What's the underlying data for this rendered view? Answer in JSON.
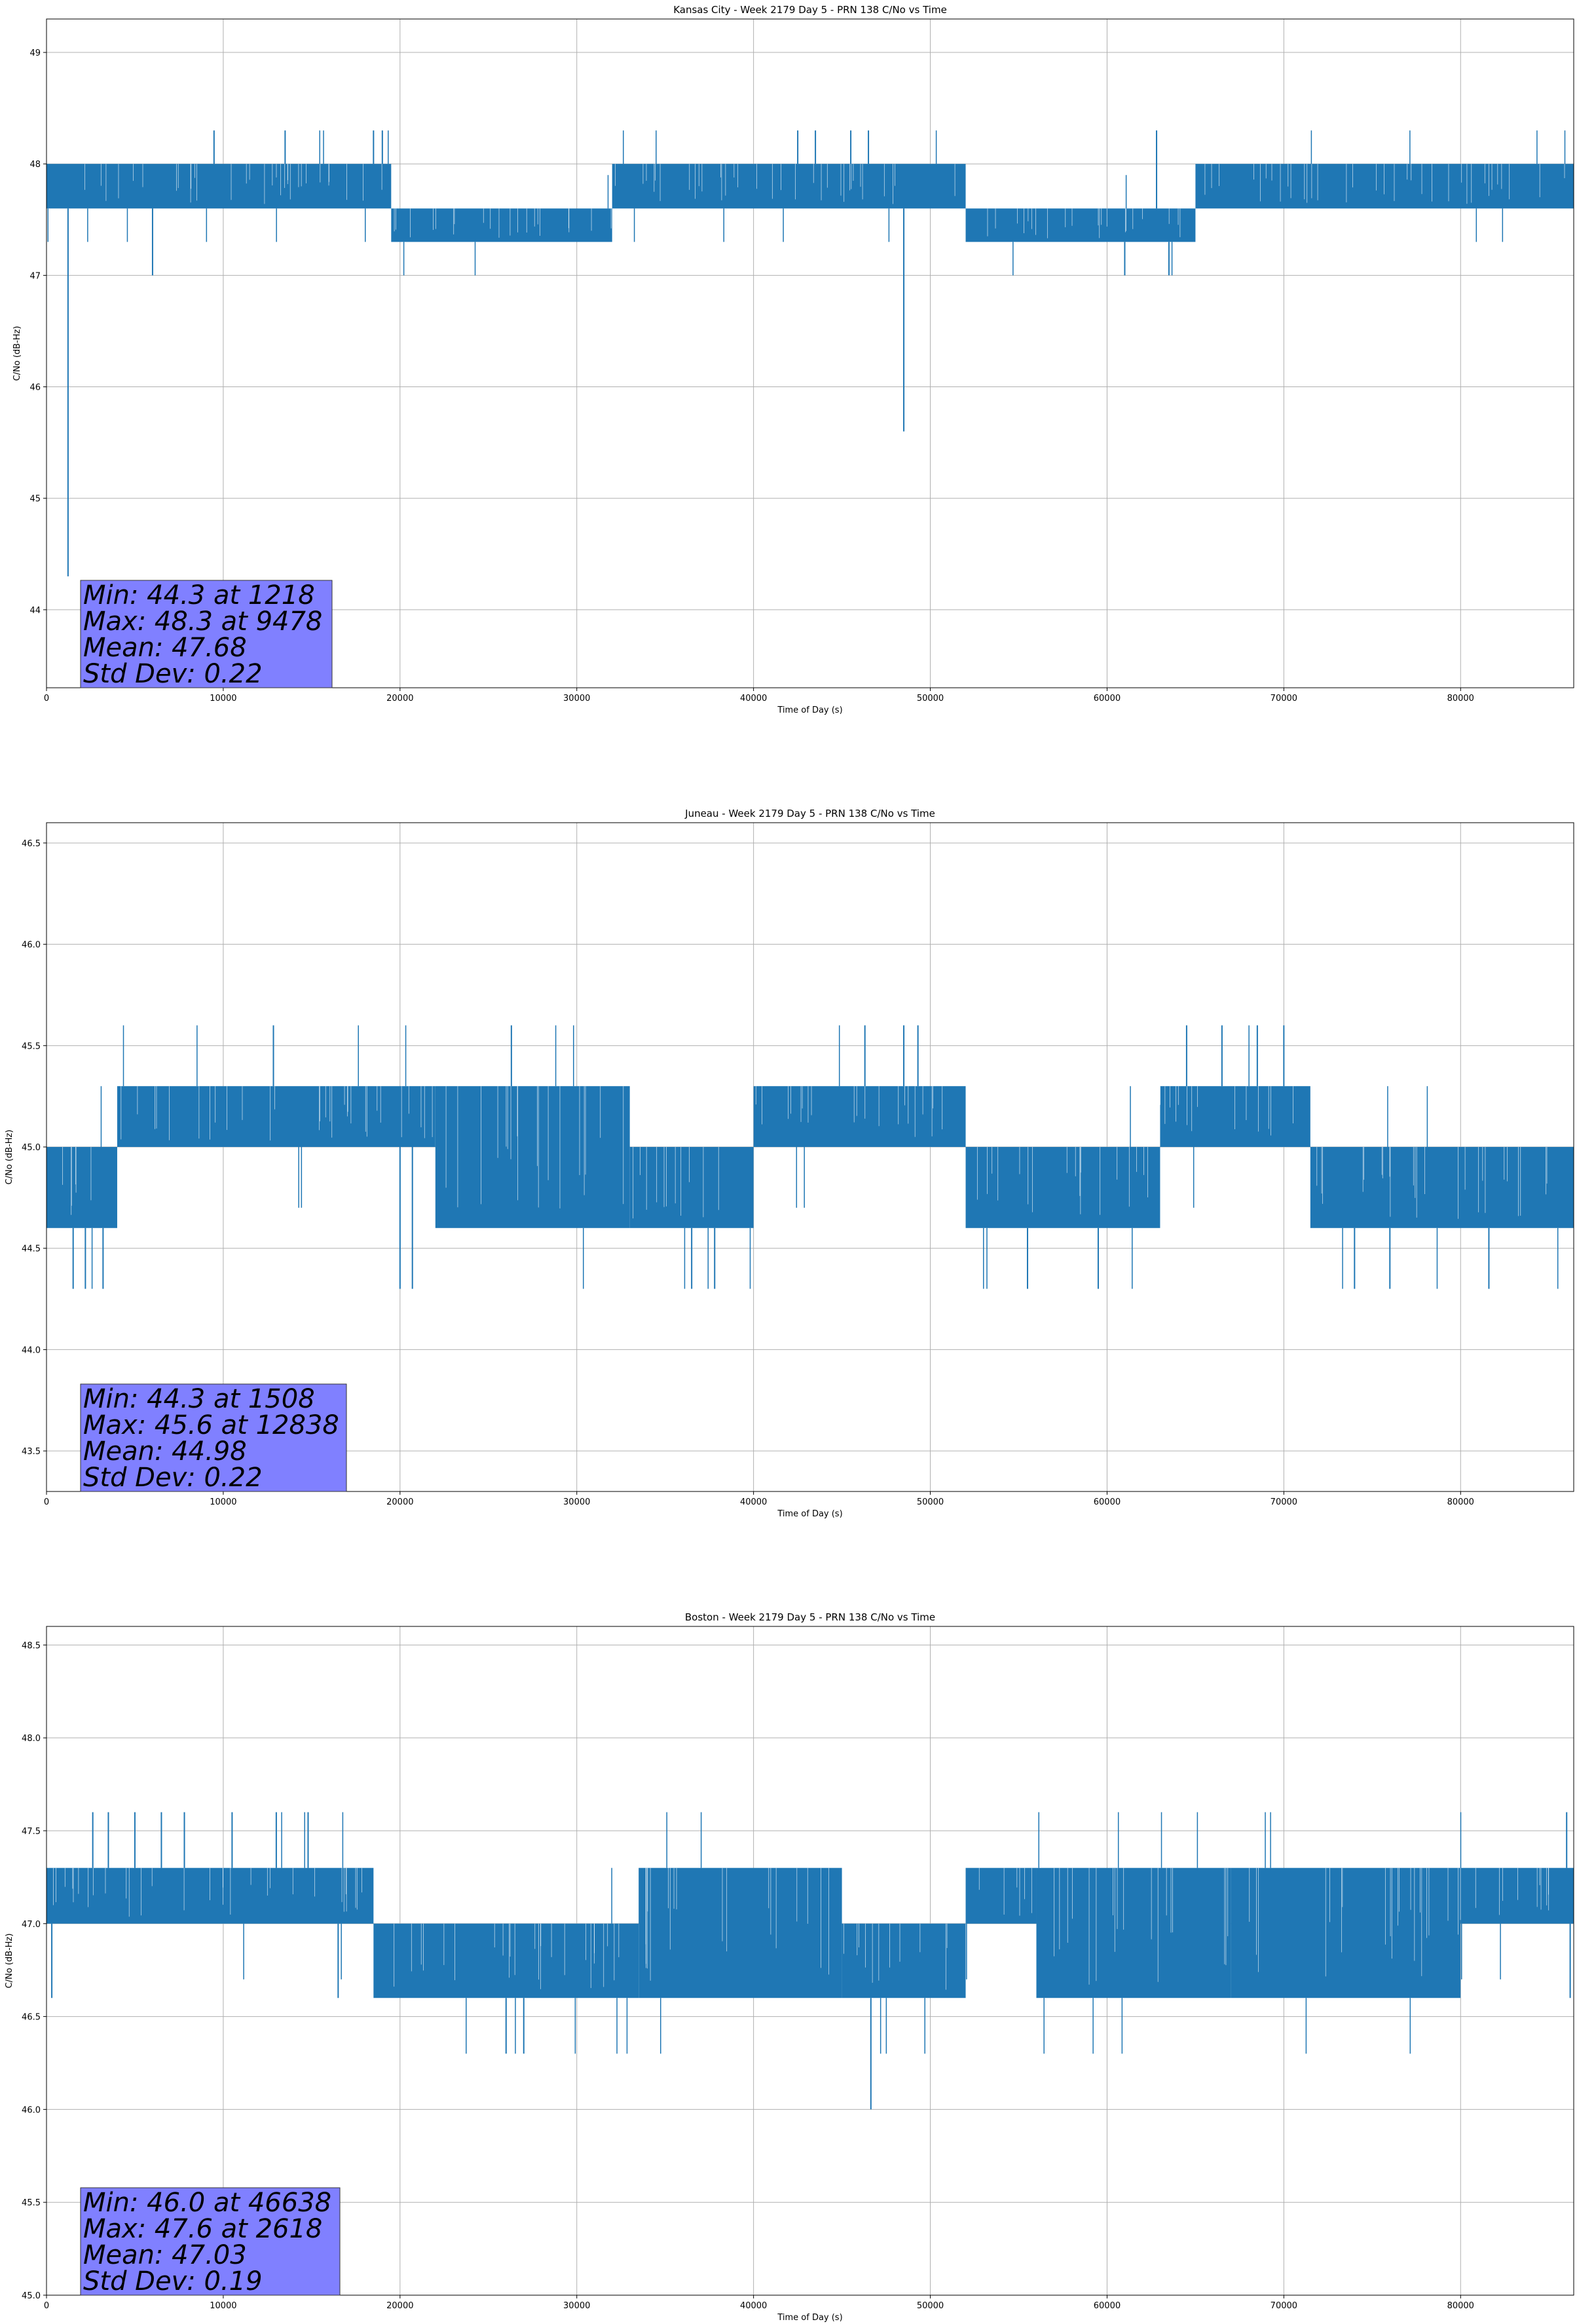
{
  "chart_data": [
    {
      "type": "line",
      "title": "Kansas City - Week 2179 Day 5 - PRN 138 C/No vs Time",
      "xlabel": "Time of Day (s)",
      "ylabel": "C/No (dB-Hz)",
      "xlim": [
        0,
        86400
      ],
      "ylim": [
        43.3,
        49.3
      ],
      "xticks": [
        "0",
        "10000",
        "20000",
        "30000",
        "40000",
        "50000",
        "60000",
        "70000",
        "80000"
      ],
      "xtick_values": [
        0,
        10000,
        20000,
        30000,
        40000,
        50000,
        60000,
        70000,
        80000
      ],
      "yticks": [
        "44",
        "45",
        "46",
        "47",
        "48",
        "49"
      ],
      "ytick_values": [
        44,
        45,
        46,
        47,
        48,
        49
      ],
      "grid": true,
      "series_color": "#1f77b4",
      "stats_box_color": "#8080ff",
      "stats": [
        "Min: 44.3 at 1218",
        "Max: 48.3 at 9478",
        "Mean: 47.68",
        "Std Dev: 0.22"
      ],
      "bands": [
        {
          "x": [
            0,
            19500
          ],
          "low": 47.6,
          "high": 48.0
        },
        {
          "x": [
            19500,
            32000
          ],
          "low": 47.3,
          "high": 47.6
        },
        {
          "x": [
            32000,
            52000
          ],
          "low": 47.6,
          "high": 48.0
        },
        {
          "x": [
            52000,
            65000
          ],
          "low": 47.3,
          "high": 47.6
        },
        {
          "x": [
            65000,
            86400
          ],
          "low": 47.6,
          "high": 48.0
        }
      ],
      "spikes": [
        {
          "x": 1218,
          "y": 44.3
        },
        {
          "x": 6000,
          "y": 47.0
        },
        {
          "x": 9478,
          "y": 48.3
        },
        {
          "x": 13500,
          "y": 48.3
        },
        {
          "x": 18500,
          "y": 48.3
        },
        {
          "x": 19000,
          "y": 48.3
        },
        {
          "x": 42500,
          "y": 48.3
        },
        {
          "x": 43500,
          "y": 48.3
        },
        {
          "x": 45500,
          "y": 48.3
        },
        {
          "x": 46500,
          "y": 48.3
        },
        {
          "x": 48500,
          "y": 45.6
        },
        {
          "x": 61000,
          "y": 47.0
        },
        {
          "x": 62800,
          "y": 48.3
        },
        {
          "x": 63500,
          "y": 47.0
        }
      ]
    },
    {
      "type": "line",
      "title": "Juneau - Week 2179 Day 5 - PRN 138 C/No vs Time",
      "xlabel": "Time of Day (s)",
      "ylabel": "C/No (dB-Hz)",
      "xlim": [
        0,
        86400
      ],
      "ylim": [
        43.3,
        46.6
      ],
      "xticks": [
        "0",
        "10000",
        "20000",
        "30000",
        "40000",
        "50000",
        "60000",
        "70000",
        "80000"
      ],
      "xtick_values": [
        0,
        10000,
        20000,
        30000,
        40000,
        50000,
        60000,
        70000,
        80000
      ],
      "yticks": [
        "43.5",
        "44.0",
        "44.5",
        "45.0",
        "45.5",
        "46.0",
        "46.5"
      ],
      "ytick_values": [
        43.5,
        44.0,
        44.5,
        45.0,
        45.5,
        46.0,
        46.5
      ],
      "grid": true,
      "series_color": "#1f77b4",
      "stats_box_color": "#8080ff",
      "stats": [
        "Min: 44.3 at 1508",
        "Max: 45.6 at 12838",
        "Mean: 44.98",
        "Std Dev: 0.22"
      ],
      "bands": [
        {
          "x": [
            0,
            4000
          ],
          "low": 44.6,
          "high": 45.0
        },
        {
          "x": [
            4000,
            22000
          ],
          "low": 45.0,
          "high": 45.3
        },
        {
          "x": [
            22000,
            33000
          ],
          "low": 44.6,
          "high": 45.3
        },
        {
          "x": [
            33000,
            40000
          ],
          "low": 44.6,
          "high": 45.0
        },
        {
          "x": [
            40000,
            52000
          ],
          "low": 45.0,
          "high": 45.3
        },
        {
          "x": [
            52000,
            63000
          ],
          "low": 44.6,
          "high": 45.0
        },
        {
          "x": [
            63000,
            71500
          ],
          "low": 45.0,
          "high": 45.3
        },
        {
          "x": [
            71500,
            86400
          ],
          "low": 44.6,
          "high": 45.0
        }
      ],
      "spikes": [
        {
          "x": 1508,
          "y": 44.3
        },
        {
          "x": 2200,
          "y": 44.3
        },
        {
          "x": 3200,
          "y": 44.3
        },
        {
          "x": 12838,
          "y": 45.6
        },
        {
          "x": 20000,
          "y": 44.3
        },
        {
          "x": 20700,
          "y": 44.3
        },
        {
          "x": 26300,
          "y": 45.6
        },
        {
          "x": 36500,
          "y": 44.3
        },
        {
          "x": 37800,
          "y": 44.3
        },
        {
          "x": 46300,
          "y": 45.6
        },
        {
          "x": 48500,
          "y": 45.6
        },
        {
          "x": 49300,
          "y": 45.6
        },
        {
          "x": 55500,
          "y": 44.3
        },
        {
          "x": 59500,
          "y": 44.3
        },
        {
          "x": 64500,
          "y": 45.6
        },
        {
          "x": 66500,
          "y": 45.6
        },
        {
          "x": 68500,
          "y": 45.6
        },
        {
          "x": 70000,
          "y": 45.6
        },
        {
          "x": 74000,
          "y": 44.3
        },
        {
          "x": 76000,
          "y": 44.3
        },
        {
          "x": 81600,
          "y": 44.3
        }
      ]
    },
    {
      "type": "line",
      "title": "Boston - Week 2179 Day 5 - PRN 138 C/No vs Time",
      "xlabel": "Time of Day (s)",
      "ylabel": "C/No (dB-Hz)",
      "xlim": [
        0,
        86400
      ],
      "ylim": [
        45.0,
        48.6
      ],
      "xticks": [
        "0",
        "10000",
        "20000",
        "30000",
        "40000",
        "50000",
        "60000",
        "70000",
        "80000"
      ],
      "xtick_values": [
        0,
        10000,
        20000,
        30000,
        40000,
        50000,
        60000,
        70000,
        80000
      ],
      "yticks": [
        "45.0",
        "45.5",
        "46.0",
        "46.5",
        "47.0",
        "47.5",
        "48.0",
        "48.5"
      ],
      "ytick_values": [
        45.0,
        45.5,
        46.0,
        46.5,
        47.0,
        47.5,
        48.0,
        48.5
      ],
      "grid": true,
      "series_color": "#1f77b4",
      "stats_box_color": "#8080ff",
      "stats": [
        "Min: 46.0 at 46638",
        "Max: 47.6 at 2618",
        "Mean: 47.03",
        "Std Dev: 0.19"
      ],
      "bands": [
        {
          "x": [
            0,
            18500
          ],
          "low": 47.0,
          "high": 47.3
        },
        {
          "x": [
            18500,
            33500
          ],
          "low": 46.6,
          "high": 47.0
        },
        {
          "x": [
            33500,
            45000
          ],
          "low": 46.6,
          "high": 47.3
        },
        {
          "x": [
            45000,
            52000
          ],
          "low": 46.6,
          "high": 47.0
        },
        {
          "x": [
            52000,
            56000
          ],
          "low": 47.0,
          "high": 47.3
        },
        {
          "x": [
            56000,
            67000
          ],
          "low": 46.6,
          "high": 47.3
        },
        {
          "x": [
            67000,
            80000
          ],
          "low": 46.6,
          "high": 47.3
        },
        {
          "x": [
            80000,
            86400
          ],
          "low": 47.0,
          "high": 47.3
        }
      ],
      "spikes": [
        {
          "x": 300,
          "y": 46.6
        },
        {
          "x": 2618,
          "y": 47.6
        },
        {
          "x": 3500,
          "y": 47.6
        },
        {
          "x": 5000,
          "y": 47.6
        },
        {
          "x": 6500,
          "y": 47.6
        },
        {
          "x": 7800,
          "y": 47.6
        },
        {
          "x": 10500,
          "y": 47.6
        },
        {
          "x": 13000,
          "y": 47.6
        },
        {
          "x": 14800,
          "y": 47.6
        },
        {
          "x": 16500,
          "y": 46.6
        },
        {
          "x": 26000,
          "y": 46.3
        },
        {
          "x": 27000,
          "y": 46.3
        },
        {
          "x": 46638,
          "y": 46.0
        },
        {
          "x": 86000,
          "y": 47.6
        },
        {
          "x": 86200,
          "y": 46.6
        }
      ]
    }
  ]
}
